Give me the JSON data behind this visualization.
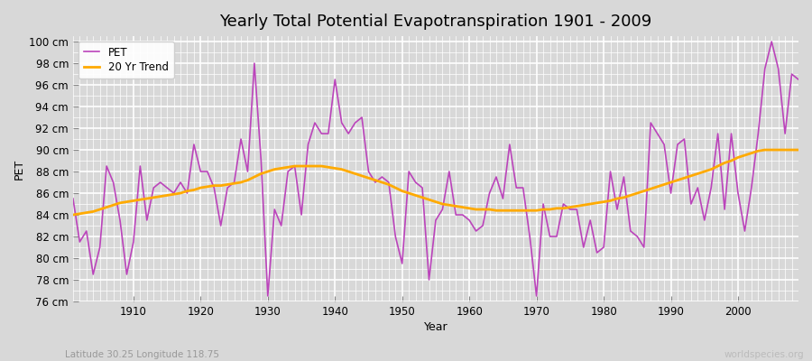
{
  "title": "Yearly Total Potential Evapotranspiration 1901 - 2009",
  "xlabel": "Year",
  "ylabel": "PET",
  "subtitle": "Latitude 30.25 Longitude 118.75",
  "watermark": "worldspecies.org",
  "pet_color": "#bb44bb",
  "trend_color": "#ffaa00",
  "background_color": "#d8d8d8",
  "plot_bg_color": "#d8d8d8",
  "ylim": [
    76,
    100.5
  ],
  "xlim": [
    1901,
    2009
  ],
  "yticks": [
    76,
    78,
    80,
    82,
    84,
    86,
    88,
    90,
    92,
    94,
    96,
    98,
    100
  ],
  "ytick_labels": [
    "76 cm",
    "78 cm",
    "80 cm",
    "82 cm",
    "84 cm",
    "86 cm",
    "88 cm",
    "90 cm",
    "92 cm",
    "94 cm",
    "96 cm",
    "98 cm",
    "100 cm"
  ],
  "years": [
    1901,
    1902,
    1903,
    1904,
    1905,
    1906,
    1907,
    1908,
    1909,
    1910,
    1911,
    1912,
    1913,
    1914,
    1915,
    1916,
    1917,
    1918,
    1919,
    1920,
    1921,
    1922,
    1923,
    1924,
    1925,
    1926,
    1927,
    1928,
    1929,
    1930,
    1931,
    1932,
    1933,
    1934,
    1935,
    1936,
    1937,
    1938,
    1939,
    1940,
    1941,
    1942,
    1943,
    1944,
    1945,
    1946,
    1947,
    1948,
    1949,
    1950,
    1951,
    1952,
    1953,
    1954,
    1955,
    1956,
    1957,
    1958,
    1959,
    1960,
    1961,
    1962,
    1963,
    1964,
    1965,
    1966,
    1967,
    1968,
    1969,
    1970,
    1971,
    1972,
    1973,
    1974,
    1975,
    1976,
    1977,
    1978,
    1979,
    1980,
    1981,
    1982,
    1983,
    1984,
    1985,
    1986,
    1987,
    1988,
    1989,
    1990,
    1991,
    1992,
    1993,
    1994,
    1995,
    1996,
    1997,
    1998,
    1999,
    2000,
    2001,
    2002,
    2003,
    2004,
    2005,
    2006,
    2007,
    2008,
    2009
  ],
  "pet_values": [
    85.5,
    81.5,
    82.5,
    78.5,
    81.0,
    88.5,
    87.0,
    83.5,
    78.5,
    81.5,
    88.5,
    83.5,
    86.5,
    87.0,
    86.5,
    86.0,
    87.0,
    86.0,
    90.5,
    88.0,
    88.0,
    86.5,
    83.0,
    86.5,
    87.0,
    91.0,
    88.0,
    98.0,
    89.0,
    76.5,
    84.5,
    83.0,
    88.0,
    88.5,
    84.0,
    90.5,
    92.5,
    91.5,
    91.5,
    96.5,
    92.5,
    91.5,
    92.5,
    93.0,
    88.0,
    87.0,
    87.5,
    87.0,
    82.0,
    79.5,
    88.0,
    87.0,
    86.5,
    78.0,
    83.5,
    84.5,
    88.0,
    84.0,
    84.0,
    83.5,
    82.5,
    83.0,
    86.0,
    87.5,
    85.5,
    90.5,
    86.5,
    86.5,
    82.0,
    76.5,
    85.0,
    82.0,
    82.0,
    85.0,
    84.5,
    84.5,
    81.0,
    83.5,
    80.5,
    81.0,
    88.0,
    84.5,
    87.5,
    82.5,
    82.0,
    81.0,
    92.5,
    91.5,
    90.5,
    86.0,
    90.5,
    91.0,
    85.0,
    86.5,
    83.5,
    86.5,
    91.5,
    84.5,
    91.5,
    86.0,
    82.5,
    86.5,
    91.5,
    97.5,
    100.0,
    97.5,
    91.5,
    97.0,
    96.5
  ],
  "trend_values": [
    84.0,
    84.1,
    84.2,
    84.3,
    84.5,
    84.7,
    84.9,
    85.1,
    85.2,
    85.3,
    85.4,
    85.5,
    85.6,
    85.7,
    85.8,
    85.9,
    86.0,
    86.2,
    86.3,
    86.5,
    86.6,
    86.7,
    86.7,
    86.8,
    86.9,
    87.0,
    87.2,
    87.5,
    87.8,
    88.0,
    88.2,
    88.3,
    88.4,
    88.5,
    88.5,
    88.5,
    88.5,
    88.5,
    88.4,
    88.3,
    88.2,
    88.0,
    87.8,
    87.6,
    87.4,
    87.2,
    87.0,
    86.8,
    86.5,
    86.2,
    86.0,
    85.8,
    85.6,
    85.4,
    85.2,
    85.0,
    84.9,
    84.8,
    84.7,
    84.6,
    84.5,
    84.5,
    84.5,
    84.4,
    84.4,
    84.4,
    84.4,
    84.4,
    84.4,
    84.4,
    84.5,
    84.5,
    84.6,
    84.6,
    84.7,
    84.8,
    84.9,
    85.0,
    85.1,
    85.2,
    85.3,
    85.5,
    85.6,
    85.8,
    86.0,
    86.2,
    86.4,
    86.6,
    86.8,
    87.0,
    87.2,
    87.4,
    87.6,
    87.8,
    88.0,
    88.2,
    88.5,
    88.8,
    89.0,
    89.3,
    89.5,
    89.7,
    89.9,
    90.0,
    90.0,
    90.0,
    90.0,
    90.0,
    90.0
  ],
  "legend_entries": [
    "PET",
    "20 Yr Trend"
  ],
  "grid_color": "#ffffff",
  "title_fontsize": 13,
  "axis_fontsize": 9,
  "tick_fontsize": 8.5
}
